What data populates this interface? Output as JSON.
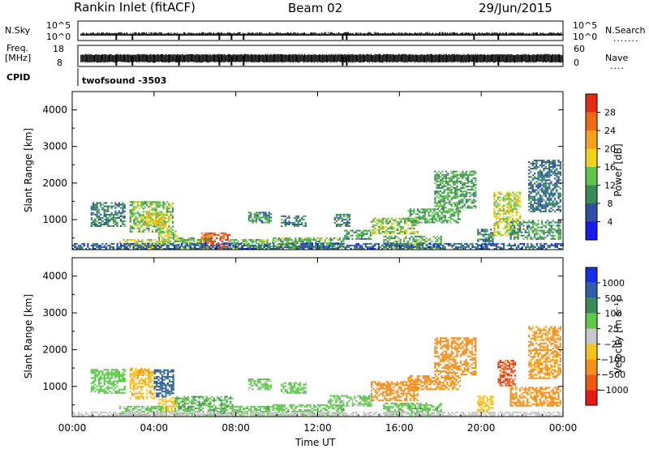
{
  "header": {
    "station": "Rankin Inlet (fitACF)",
    "beam": "Beam 02",
    "date": "29/Jun/2015"
  },
  "strip_nsky": {
    "left_label": "N.Sky",
    "right_label": "N.Search",
    "left_ticks": [
      "10^5",
      "10^0"
    ],
    "right_ticks": [
      "10^5",
      "10^0"
    ]
  },
  "strip_freq": {
    "left_label_1": "Freq.",
    "left_label_2": "[MHz]",
    "right_label": "Nave",
    "left_ticks": [
      "18",
      "8"
    ],
    "right_ticks": [
      "60",
      "0"
    ]
  },
  "cpid": {
    "label": "CPID",
    "program": "twofsound -3503"
  },
  "colors": {
    "power_scale": [
      "#1a1aee",
      "#2e4ea8",
      "#3b8a5a",
      "#5ec44a",
      "#f2d21a",
      "#f7a21a",
      "#f06a12",
      "#e62a12"
    ],
    "velocity_scale": [
      "#1a2ee6",
      "#2e5ea8",
      "#3b8a5a",
      "#5ec84a",
      "#c8c8c8",
      "#f7c21a",
      "#f7901a",
      "#f05a12",
      "#e61a12"
    ]
  },
  "chart_data": [
    {
      "type": "heatmap",
      "parameter": "Power",
      "ylabel": "Slant Range [km]",
      "xlabel": "",
      "y_ticks": [
        "1000",
        "2000",
        "3000",
        "4000"
      ],
      "x_range_hours": [
        0,
        24
      ],
      "y_range_km": [
        180,
        4500
      ],
      "colorbar": {
        "label": "Power [dB]",
        "ticks": [
          "4",
          "8",
          "12",
          "16",
          "20",
          "24",
          "28"
        ],
        "range": [
          0,
          32
        ]
      },
      "regions": [
        {
          "t0": 0.9,
          "t1": 2.6,
          "r0": 800,
          "r1": 1450,
          "v": 9
        },
        {
          "t0": 2.8,
          "t1": 4.9,
          "r0": 650,
          "r1": 1500,
          "v": 14
        },
        {
          "t0": 3.6,
          "t1": 4.5,
          "r0": 800,
          "r1": 1200,
          "v": 19
        },
        {
          "t0": 4.2,
          "t1": 5.1,
          "r0": 300,
          "r1": 700,
          "v": 15
        },
        {
          "t0": 2.3,
          "t1": 4.6,
          "r0": 200,
          "r1": 450,
          "v": 17
        },
        {
          "t0": 5.0,
          "t1": 6.8,
          "r0": 200,
          "r1": 500,
          "v": 13
        },
        {
          "t0": 6.3,
          "t1": 7.7,
          "r0": 200,
          "r1": 620,
          "v": 27
        },
        {
          "t0": 7.7,
          "t1": 9.8,
          "r0": 200,
          "r1": 460,
          "v": 14
        },
        {
          "t0": 8.6,
          "t1": 9.7,
          "r0": 900,
          "r1": 1200,
          "v": 10
        },
        {
          "t0": 9.8,
          "t1": 13.3,
          "r0": 200,
          "r1": 500,
          "v": 13
        },
        {
          "t0": 10.2,
          "t1": 11.4,
          "r0": 800,
          "r1": 1100,
          "v": 9
        },
        {
          "t0": 12.8,
          "t1": 13.6,
          "r0": 800,
          "r1": 1150,
          "v": 10
        },
        {
          "t0": 13.3,
          "t1": 14.6,
          "r0": 450,
          "r1": 700,
          "v": 11
        },
        {
          "t0": 14.6,
          "t1": 16.9,
          "r0": 600,
          "r1": 1050,
          "v": 15
        },
        {
          "t0": 15.2,
          "t1": 18.0,
          "r0": 200,
          "r1": 520,
          "v": 13
        },
        {
          "t0": 16.4,
          "t1": 19.0,
          "r0": 900,
          "r1": 1300,
          "v": 12
        },
        {
          "t0": 17.7,
          "t1": 19.7,
          "r0": 1300,
          "r1": 2300,
          "v": 12
        },
        {
          "t0": 19.8,
          "t1": 20.6,
          "r0": 300,
          "r1": 750,
          "v": 9
        },
        {
          "t0": 20.6,
          "t1": 21.9,
          "r0": 550,
          "r1": 1750,
          "v": 17
        },
        {
          "t0": 21.4,
          "t1": 23.9,
          "r0": 450,
          "r1": 950,
          "v": 11
        },
        {
          "t0": 22.3,
          "t1": 23.9,
          "r0": 1200,
          "r1": 2600,
          "v": 8
        },
        {
          "t0": 0.0,
          "t1": 24.0,
          "r0": 180,
          "r1": 320,
          "v": 7
        }
      ]
    },
    {
      "type": "heatmap",
      "parameter": "Velocity",
      "ylabel": "Slant Range [km]",
      "xlabel": "Time UT",
      "y_ticks": [
        "1000",
        "2000",
        "3000",
        "4000"
      ],
      "x_ticks": [
        "00:00",
        "04:00",
        "08:00",
        "12:00",
        "16:00",
        "20:00",
        "00:00"
      ],
      "x_range_hours": [
        0,
        24
      ],
      "y_range_km": [
        180,
        4500
      ],
      "colorbar": {
        "label": "Velocity [m s⁻¹]",
        "ticks": [
          "1000",
          "500",
          "100",
          "25",
          "−25",
          "−100",
          "−500",
          "−1000"
        ],
        "levels": [
          1000,
          500,
          100,
          25,
          -25,
          -100,
          -500,
          -1000
        ]
      },
      "regions": [
        {
          "t0": 0.9,
          "t1": 2.6,
          "r0": 800,
          "r1": 1450,
          "v": 60
        },
        {
          "t0": 2.8,
          "t1": 4.0,
          "r0": 650,
          "r1": 1500,
          "v": -80
        },
        {
          "t0": 4.0,
          "t1": 4.9,
          "r0": 700,
          "r1": 1450,
          "v": 700
        },
        {
          "t0": 4.2,
          "t1": 5.1,
          "r0": 300,
          "r1": 700,
          "v": -60
        },
        {
          "t0": 2.3,
          "t1": 4.6,
          "r0": 200,
          "r1": 450,
          "v": 40
        },
        {
          "t0": 5.0,
          "t1": 7.8,
          "r0": 200,
          "r1": 700,
          "v": 80
        },
        {
          "t0": 7.8,
          "t1": 9.8,
          "r0": 200,
          "r1": 460,
          "v": 60
        },
        {
          "t0": 8.6,
          "t1": 9.7,
          "r0": 900,
          "r1": 1200,
          "v": 40
        },
        {
          "t0": 9.8,
          "t1": 13.3,
          "r0": 200,
          "r1": 500,
          "v": 60
        },
        {
          "t0": 10.2,
          "t1": 11.4,
          "r0": 800,
          "r1": 1100,
          "v": 40
        },
        {
          "t0": 12.5,
          "t1": 14.6,
          "r0": 450,
          "r1": 750,
          "v": 40
        },
        {
          "t0": 14.6,
          "t1": 16.9,
          "r0": 600,
          "r1": 1100,
          "v": -250
        },
        {
          "t0": 15.2,
          "t1": 18.0,
          "r0": 200,
          "r1": 520,
          "v": 60
        },
        {
          "t0": 16.4,
          "t1": 19.0,
          "r0": 900,
          "r1": 1300,
          "v": -200
        },
        {
          "t0": 17.7,
          "t1": 19.7,
          "r0": 1300,
          "r1": 2300,
          "v": -300
        },
        {
          "t0": 19.8,
          "t1": 20.6,
          "r0": 300,
          "r1": 750,
          "v": -60
        },
        {
          "t0": 20.8,
          "t1": 21.7,
          "r0": 1000,
          "r1": 1700,
          "v": -800
        },
        {
          "t0": 21.4,
          "t1": 23.9,
          "r0": 450,
          "r1": 950,
          "v": -250
        },
        {
          "t0": 22.3,
          "t1": 23.9,
          "r0": 1200,
          "r1": 2600,
          "v": -150
        },
        {
          "t0": 0.0,
          "t1": 24.0,
          "r0": 180,
          "r1": 300,
          "v": 0
        }
      ]
    }
  ]
}
